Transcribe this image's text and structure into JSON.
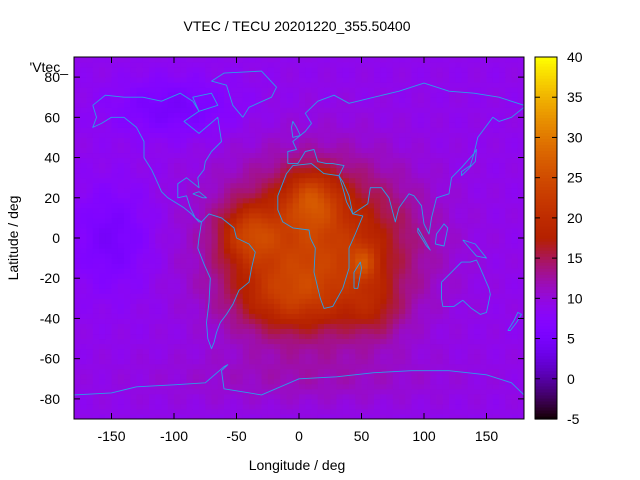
{
  "chart_data": {
    "type": "heatmap",
    "title": "VTEC / TECU 20201220_355.50400",
    "xlabel": "Longitude / deg",
    "ylabel": "Latitude / deg",
    "key_label": "'Vtec_",
    "xlim": [
      -180,
      180
    ],
    "ylim": [
      -90,
      90
    ],
    "xticks": [
      -150,
      -100,
      -50,
      0,
      50,
      100,
      150
    ],
    "yticks": [
      -80,
      -60,
      -40,
      -20,
      0,
      20,
      40,
      60,
      80
    ],
    "colorbar": {
      "min": -5,
      "max": 40,
      "ticks": [
        -5,
        0,
        5,
        10,
        15,
        20,
        25,
        30,
        35,
        40
      ],
      "palette": "gnuplot rgbformulae 7,5,15"
    },
    "background_value": 9,
    "features": [
      {
        "name": "main-anomaly",
        "lon": 15,
        "lat": -5,
        "sig_lon": 52,
        "sig_lat": 28,
        "amp": 14
      },
      {
        "name": "south-america-crest",
        "lon": -40,
        "lat": 2,
        "sig_lon": 16,
        "sig_lat": 10,
        "amp": 8
      },
      {
        "name": "north-africa-crest",
        "lon": 10,
        "lat": 20,
        "sig_lon": 15,
        "sig_lat": 10,
        "amp": 8
      },
      {
        "name": "madagascar-peak",
        "lon": 52,
        "lat": -12,
        "sig_lon": 8,
        "sig_lat": 6,
        "amp": 6
      },
      {
        "name": "south-atlantic",
        "lon": -10,
        "lat": -30,
        "sig_lon": 30,
        "sig_lat": 12,
        "amp": 6
      },
      {
        "name": "southern-indian-ocean",
        "lon": 60,
        "lat": -35,
        "sig_lon": 15,
        "sig_lat": 10,
        "amp": 4
      },
      {
        "name": "east-pacific-low",
        "lon": -150,
        "lat": 0,
        "sig_lon": 22,
        "sig_lat": 18,
        "amp": -4
      },
      {
        "name": "north-america-low",
        "lon": -100,
        "lat": 65,
        "sig_lon": 35,
        "sig_lat": 10,
        "amp": -4
      },
      {
        "name": "antarctic-moderate",
        "lon": 0,
        "lat": -70,
        "sig_lon": 90,
        "sig_lat": 10,
        "amp": 2
      }
    ],
    "coastlines": [
      {
        "name": "north-america",
        "points": [
          [
            -165,
            66
          ],
          [
            -155,
            71
          ],
          [
            -140,
            70
          ],
          [
            -125,
            70
          ],
          [
            -110,
            68
          ],
          [
            -95,
            72
          ],
          [
            -85,
            68
          ],
          [
            -80,
            63
          ],
          [
            -92,
            58
          ],
          [
            -80,
            52
          ],
          [
            -65,
            60
          ],
          [
            -62,
            48
          ],
          [
            -70,
            43
          ],
          [
            -75,
            38
          ],
          [
            -76,
            34
          ],
          [
            -81,
            30
          ],
          [
            -80,
            25
          ],
          [
            -90,
            30
          ],
          [
            -97,
            27
          ],
          [
            -97,
            20
          ],
          [
            -90,
            21
          ],
          [
            -87,
            15
          ],
          [
            -83,
            10
          ],
          [
            -78,
            8
          ],
          [
            -80,
            8
          ],
          [
            -86,
            12
          ],
          [
            -92,
            15
          ],
          [
            -105,
            20
          ],
          [
            -110,
            23
          ],
          [
            -115,
            30
          ],
          [
            -118,
            34
          ],
          [
            -124,
            40
          ],
          [
            -124,
            48
          ],
          [
            -130,
            55
          ],
          [
            -140,
            60
          ],
          [
            -150,
            60
          ],
          [
            -158,
            57
          ],
          [
            -165,
            55
          ],
          [
            -162,
            60
          ],
          [
            -165,
            66
          ]
        ]
      },
      {
        "name": "south-america",
        "points": [
          [
            -78,
            8
          ],
          [
            -72,
            12
          ],
          [
            -62,
            10
          ],
          [
            -52,
            5
          ],
          [
            -50,
            0
          ],
          [
            -40,
            -3
          ],
          [
            -35,
            -7
          ],
          [
            -38,
            -15
          ],
          [
            -40,
            -22
          ],
          [
            -48,
            -26
          ],
          [
            -53,
            -33
          ],
          [
            -58,
            -38
          ],
          [
            -63,
            -42
          ],
          [
            -66,
            -47
          ],
          [
            -68,
            -52
          ],
          [
            -70,
            -55
          ],
          [
            -73,
            -50
          ],
          [
            -74,
            -42
          ],
          [
            -72,
            -32
          ],
          [
            -71,
            -20
          ],
          [
            -76,
            -13
          ],
          [
            -81,
            -5
          ],
          [
            -80,
            0
          ],
          [
            -78,
            8
          ]
        ]
      },
      {
        "name": "africa",
        "points": [
          [
            -17,
            21
          ],
          [
            -10,
            32
          ],
          [
            -5,
            36
          ],
          [
            10,
            37
          ],
          [
            20,
            32
          ],
          [
            32,
            31
          ],
          [
            35,
            25
          ],
          [
            38,
            18
          ],
          [
            43,
            12
          ],
          [
            51,
            11
          ],
          [
            45,
            2
          ],
          [
            40,
            -5
          ],
          [
            40,
            -15
          ],
          [
            35,
            -25
          ],
          [
            27,
            -34
          ],
          [
            20,
            -35
          ],
          [
            17,
            -30
          ],
          [
            12,
            -17
          ],
          [
            13,
            -5
          ],
          [
            9,
            0
          ],
          [
            8,
            4
          ],
          [
            -5,
            5
          ],
          [
            -13,
            8
          ],
          [
            -17,
            14
          ],
          [
            -17,
            21
          ]
        ]
      },
      {
        "name": "eurasia",
        "points": [
          [
            -9,
            37
          ],
          [
            -9,
            43
          ],
          [
            -2,
            44
          ],
          [
            -5,
            48
          ],
          [
            5,
            53
          ],
          [
            10,
            57
          ],
          [
            5,
            62
          ],
          [
            15,
            68
          ],
          [
            28,
            71
          ],
          [
            40,
            67
          ],
          [
            60,
            70
          ],
          [
            80,
            73
          ],
          [
            100,
            77
          ],
          [
            120,
            73
          ],
          [
            140,
            72
          ],
          [
            160,
            70
          ],
          [
            180,
            66
          ],
          [
            180,
            65
          ],
          [
            170,
            60
          ],
          [
            160,
            58
          ],
          [
            155,
            60
          ],
          [
            143,
            50
          ],
          [
            140,
            42
          ],
          [
            130,
            35
          ],
          [
            122,
            30
          ],
          [
            120,
            22
          ],
          [
            110,
            20
          ],
          [
            106,
            10
          ],
          [
            104,
            2
          ],
          [
            100,
            7
          ],
          [
            98,
            16
          ],
          [
            92,
            21
          ],
          [
            88,
            22
          ],
          [
            80,
            15
          ],
          [
            77,
            8
          ],
          [
            72,
            20
          ],
          [
            66,
            25
          ],
          [
            57,
            25
          ],
          [
            55,
            17
          ],
          [
            43,
            12
          ],
          [
            40,
            21
          ],
          [
            35,
            28
          ],
          [
            32,
            31
          ],
          [
            36,
            36
          ],
          [
            27,
            37
          ],
          [
            22,
            37
          ],
          [
            15,
            38
          ],
          [
            12,
            44
          ],
          [
            5,
            43
          ],
          [
            -1,
            37
          ],
          [
            -9,
            37
          ]
        ]
      },
      {
        "name": "australia",
        "points": [
          [
            114,
            -22
          ],
          [
            114,
            -30
          ],
          [
            115,
            -34
          ],
          [
            124,
            -34
          ],
          [
            131,
            -31
          ],
          [
            138,
            -35
          ],
          [
            145,
            -38
          ],
          [
            150,
            -37
          ],
          [
            153,
            -28
          ],
          [
            152,
            -25
          ],
          [
            145,
            -15
          ],
          [
            142,
            -11
          ],
          [
            137,
            -12
          ],
          [
            130,
            -12
          ],
          [
            122,
            -17
          ],
          [
            114,
            -22
          ]
        ]
      },
      {
        "name": "greenland",
        "points": [
          [
            -45,
            60
          ],
          [
            -53,
            66
          ],
          [
            -58,
            76
          ],
          [
            -70,
            78
          ],
          [
            -60,
            82
          ],
          [
            -30,
            83
          ],
          [
            -18,
            75
          ],
          [
            -22,
            70
          ],
          [
            -40,
            65
          ],
          [
            -45,
            60
          ]
        ]
      },
      {
        "name": "uk",
        "points": [
          [
            -5,
            50
          ],
          [
            1,
            51
          ],
          [
            -2,
            55
          ],
          [
            -5,
            58
          ],
          [
            -6,
            55
          ],
          [
            -5,
            50
          ]
        ]
      },
      {
        "name": "madagascar",
        "points": [
          [
            44,
            -25
          ],
          [
            47,
            -25
          ],
          [
            50,
            -15
          ],
          [
            49,
            -12
          ],
          [
            44,
            -17
          ],
          [
            44,
            -25
          ]
        ]
      },
      {
        "name": "japan",
        "points": [
          [
            130,
            31
          ],
          [
            135,
            34
          ],
          [
            141,
            38
          ],
          [
            142,
            44
          ],
          [
            140,
            42
          ],
          [
            137,
            36
          ],
          [
            130,
            33
          ],
          [
            130,
            31
          ]
        ]
      },
      {
        "name": "borneo",
        "points": [
          [
            109,
            -3
          ],
          [
            110,
            2
          ],
          [
            116,
            7
          ],
          [
            119,
            5
          ],
          [
            116,
            -4
          ],
          [
            109,
            -3
          ]
        ]
      },
      {
        "name": "sumatra",
        "points": [
          [
            95,
            5
          ],
          [
            105,
            -6
          ],
          [
            102,
            -4
          ],
          [
            95,
            3
          ],
          [
            95,
            5
          ]
        ]
      },
      {
        "name": "new-guinea",
        "points": [
          [
            131,
            -1
          ],
          [
            141,
            -3
          ],
          [
            150,
            -10
          ],
          [
            142,
            -9
          ],
          [
            135,
            -4
          ],
          [
            131,
            -1
          ]
        ]
      },
      {
        "name": "new-zealand",
        "points": [
          [
            167,
            -46
          ],
          [
            172,
            -41
          ],
          [
            175,
            -37
          ],
          [
            178,
            -38
          ],
          [
            174,
            -42
          ],
          [
            169,
            -46
          ],
          [
            167,
            -46
          ]
        ]
      },
      {
        "name": "cuba",
        "points": [
          [
            -85,
            22
          ],
          [
            -77,
            20
          ],
          [
            -74,
            20
          ],
          [
            -80,
            23
          ],
          [
            -85,
            22
          ]
        ]
      },
      {
        "name": "baffin",
        "points": [
          [
            -80,
            63
          ],
          [
            -65,
            66
          ],
          [
            -70,
            72
          ],
          [
            -85,
            70
          ],
          [
            -80,
            63
          ]
        ]
      },
      {
        "name": "antarctica",
        "points": [
          [
            -180,
            -78
          ],
          [
            -150,
            -77
          ],
          [
            -130,
            -74
          ],
          [
            -100,
            -73
          ],
          [
            -75,
            -72
          ],
          [
            -60,
            -64
          ],
          [
            -57,
            -63
          ],
          [
            -62,
            -66
          ],
          [
            -60,
            -75
          ],
          [
            -30,
            -78
          ],
          [
            0,
            -70
          ],
          [
            30,
            -69
          ],
          [
            60,
            -67
          ],
          [
            90,
            -66
          ],
          [
            120,
            -66
          ],
          [
            150,
            -68
          ],
          [
            170,
            -72
          ],
          [
            180,
            -78
          ]
        ]
      }
    ]
  }
}
